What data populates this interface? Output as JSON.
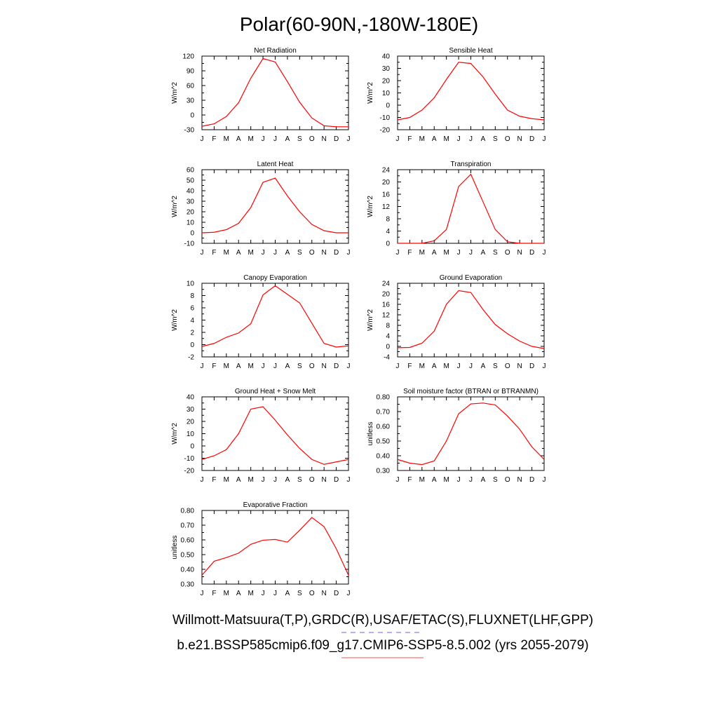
{
  "figure": {
    "title": "Polar(60-90N,-180W-180E)",
    "legend": [
      {
        "text": "Willmott-Matsuura(T,P),GRDC(R),USAF/ETAC(S),FLUXNET(LHF,GPP)",
        "line_color": "#6666ee",
        "line_style": "dashed"
      },
      {
        "text": "b.e21.BSSP585cmip6.f09_g17.CMIP6-SSP5-8.5.002 (yrs 2055-2079)",
        "line_color": "#ee5555",
        "line_style": "solid"
      }
    ]
  },
  "chart_data": [
    {
      "type": "line",
      "title": "Net Radiation",
      "xlabel": "",
      "ylabel": "W/m^2",
      "categories": [
        "J",
        "F",
        "M",
        "A",
        "M",
        "J",
        "J",
        "A",
        "S",
        "O",
        "N",
        "D",
        "J"
      ],
      "ylim": [
        -30,
        120
      ],
      "yticks": [
        -30,
        0,
        30,
        60,
        90,
        120
      ],
      "ytick_labels": [
        "-30",
        "0",
        "30",
        "60",
        "90",
        "120"
      ],
      "series": [
        {
          "color": "#ff0000",
          "values": [
            -23,
            -18,
            -3,
            25,
            75,
            115,
            108,
            68,
            26,
            -6,
            -22,
            -24,
            -24
          ]
        }
      ]
    },
    {
      "type": "line",
      "title": "Sensible Heat",
      "xlabel": "",
      "ylabel": "W/m^2",
      "categories": [
        "J",
        "F",
        "M",
        "A",
        "M",
        "J",
        "J",
        "A",
        "S",
        "O",
        "N",
        "D",
        "J"
      ],
      "ylim": [
        -20,
        40
      ],
      "yticks": [
        -20,
        -10,
        0,
        10,
        20,
        30,
        40
      ],
      "ytick_labels": [
        "-20",
        "-10",
        "0",
        "10",
        "20",
        "30",
        "40"
      ],
      "series": [
        {
          "color": "#ff0000",
          "values": [
            -12,
            -10,
            -4,
            6,
            21,
            35,
            34,
            23,
            9,
            -4,
            -9,
            -11,
            -12
          ]
        }
      ]
    },
    {
      "type": "line",
      "title": "Latent Heat",
      "xlabel": "",
      "ylabel": "W/m^2",
      "categories": [
        "J",
        "F",
        "M",
        "A",
        "M",
        "J",
        "J",
        "A",
        "S",
        "O",
        "N",
        "D",
        "J"
      ],
      "ylim": [
        -10,
        60
      ],
      "yticks": [
        -10,
        0,
        10,
        20,
        30,
        40,
        50,
        60
      ],
      "ytick_labels": [
        "-10",
        "0",
        "10",
        "20",
        "30",
        "40",
        "50",
        "60"
      ],
      "series": [
        {
          "color": "#ff0000",
          "values": [
            0,
            0.5,
            3,
            9,
            24,
            48,
            52,
            35,
            20,
            8,
            2,
            0,
            0
          ]
        }
      ]
    },
    {
      "type": "line",
      "title": "Transpiration",
      "xlabel": "",
      "ylabel": "W/m^2",
      "categories": [
        "J",
        "F",
        "M",
        "A",
        "M",
        "J",
        "J",
        "A",
        "S",
        "O",
        "N",
        "D",
        "J"
      ],
      "ylim": [
        0,
        24
      ],
      "yticks": [
        0,
        4,
        8,
        12,
        16,
        20,
        24
      ],
      "ytick_labels": [
        "0",
        "4",
        "8",
        "12",
        "16",
        "20",
        "24"
      ],
      "series": [
        {
          "color": "#ff0000",
          "values": [
            0,
            0,
            0,
            0.8,
            4.5,
            18.5,
            22.5,
            13.5,
            4.5,
            0.5,
            0,
            0,
            0
          ]
        }
      ]
    },
    {
      "type": "line",
      "title": "Canopy Evaporation",
      "xlabel": "",
      "ylabel": "W/m^2",
      "categories": [
        "J",
        "F",
        "M",
        "A",
        "M",
        "J",
        "J",
        "A",
        "S",
        "O",
        "N",
        "D",
        "J"
      ],
      "ylim": [
        -2,
        10
      ],
      "yticks": [
        -2,
        0,
        2,
        4,
        6,
        8,
        10
      ],
      "ytick_labels": [
        "-2",
        "0",
        "2",
        "4",
        "6",
        "8",
        "10"
      ],
      "series": [
        {
          "color": "#ff0000",
          "values": [
            -0.3,
            0.2,
            1.2,
            1.9,
            3.4,
            8.1,
            9.6,
            8.2,
            6.8,
            3.5,
            0.2,
            -0.4,
            -0.2
          ]
        }
      ]
    },
    {
      "type": "line",
      "title": "Ground Evaporation",
      "xlabel": "",
      "ylabel": "W/m^2",
      "categories": [
        "J",
        "F",
        "M",
        "A",
        "M",
        "J",
        "J",
        "A",
        "S",
        "O",
        "N",
        "D",
        "J"
      ],
      "ylim": [
        -4,
        24
      ],
      "yticks": [
        -4,
        0,
        4,
        8,
        12,
        16,
        20,
        24
      ],
      "ytick_labels": [
        "-4",
        "0",
        "4",
        "8",
        "12",
        "16",
        "20",
        "24"
      ],
      "series": [
        {
          "color": "#ff0000",
          "values": [
            -0.5,
            -0.4,
            1.2,
            5.8,
            16,
            21.2,
            20.5,
            14,
            8.3,
            4.8,
            2,
            0,
            -0.8
          ]
        }
      ]
    },
    {
      "type": "line",
      "title": "Ground Heat + Snow Melt",
      "xlabel": "",
      "ylabel": "W/m^2",
      "categories": [
        "J",
        "F",
        "M",
        "A",
        "M",
        "J",
        "J",
        "A",
        "S",
        "O",
        "N",
        "D",
        "J"
      ],
      "ylim": [
        -20,
        40
      ],
      "yticks": [
        -20,
        -10,
        0,
        10,
        20,
        30,
        40
      ],
      "ytick_labels": [
        "-20",
        "-10",
        "0",
        "10",
        "20",
        "30",
        "40"
      ],
      "series": [
        {
          "color": "#ff0000",
          "values": [
            -11,
            -8,
            -3,
            10,
            30,
            32,
            21,
            9,
            -2,
            -11,
            -15,
            -13,
            -11
          ]
        }
      ]
    },
    {
      "type": "line",
      "title": "Soil moisture factor (BTRAN or BTRANMN)",
      "xlabel": "",
      "ylabel": "unitless",
      "categories": [
        "J",
        "F",
        "M",
        "A",
        "M",
        "J",
        "J",
        "A",
        "S",
        "O",
        "N",
        "D",
        "J"
      ],
      "ylim": [
        0.3,
        0.8
      ],
      "yticks": [
        0.3,
        0.4,
        0.5,
        0.6,
        0.7,
        0.8
      ],
      "ytick_labels": [
        "0.30",
        "0.40",
        "0.50",
        "0.60",
        "0.70",
        "0.80"
      ],
      "series": [
        {
          "color": "#ff0000",
          "values": [
            0.375,
            0.35,
            0.34,
            0.365,
            0.5,
            0.685,
            0.752,
            0.758,
            0.745,
            0.67,
            0.58,
            0.46,
            0.375
          ]
        }
      ]
    },
    {
      "type": "line",
      "title": "Evaporative Fraction",
      "xlabel": "",
      "ylabel": "unitless",
      "categories": [
        "J",
        "F",
        "M",
        "A",
        "M",
        "J",
        "J",
        "A",
        "S",
        "O",
        "N",
        "D",
        "J"
      ],
      "ylim": [
        0.3,
        0.8
      ],
      "yticks": [
        0.3,
        0.4,
        0.5,
        0.6,
        0.7,
        0.8
      ],
      "ytick_labels": [
        "0.30",
        "0.40",
        "0.50",
        "0.60",
        "0.70",
        "0.80"
      ],
      "series": [
        {
          "color": "#ff0000",
          "values": [
            0.36,
            0.455,
            0.48,
            0.51,
            0.57,
            0.598,
            0.603,
            0.585,
            0.665,
            0.752,
            0.69,
            0.54,
            0.36
          ]
        }
      ]
    }
  ]
}
